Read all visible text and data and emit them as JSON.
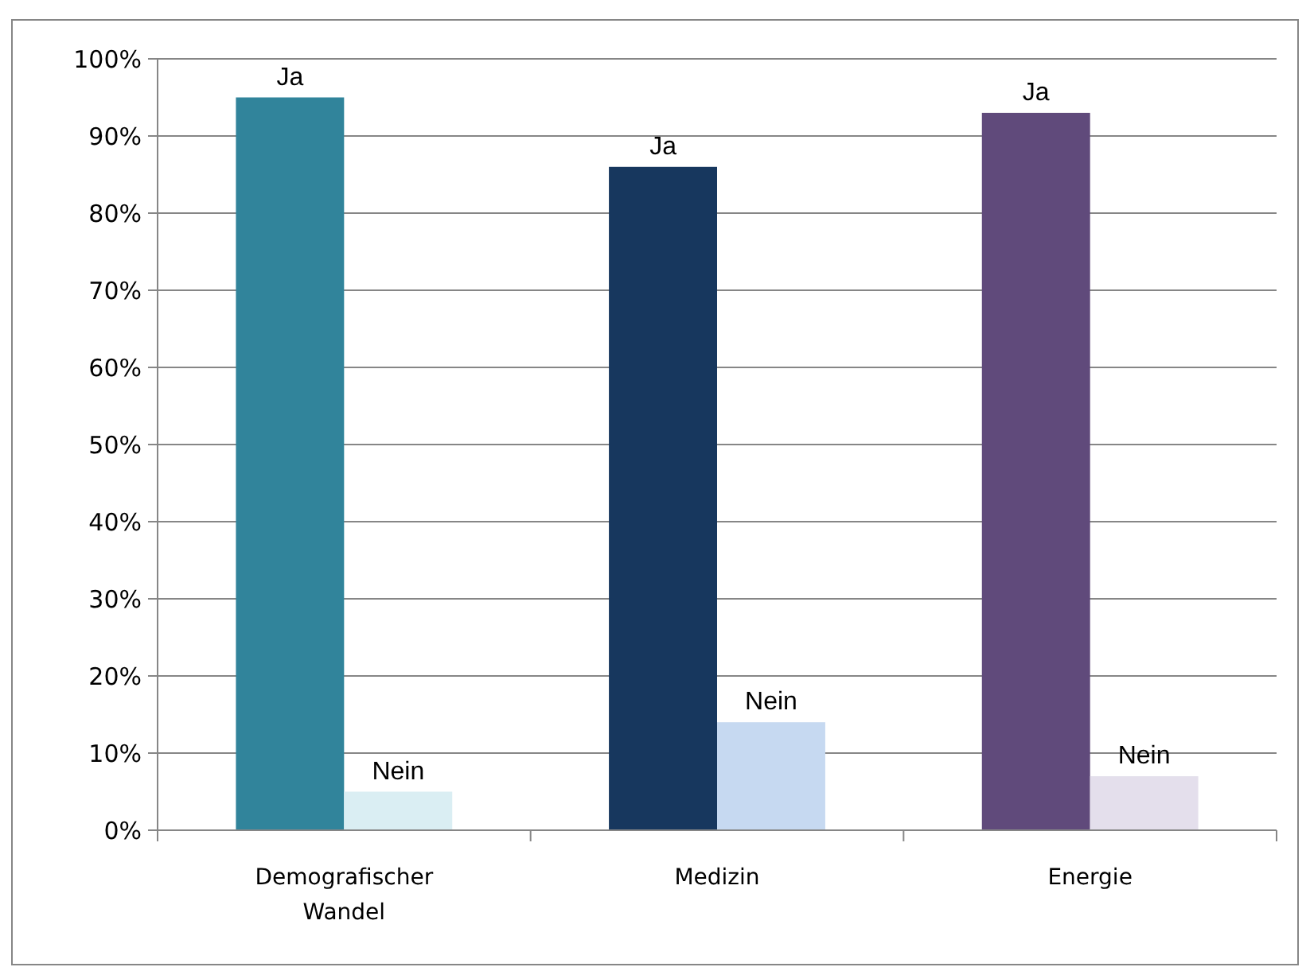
{
  "chart_data": {
    "type": "bar",
    "categories": [
      "Demografischer Wandel",
      "Medizin",
      "Energie"
    ],
    "series": [
      {
        "name": "Ja",
        "colors": [
          "#31849b",
          "#17375e",
          "#604a7b"
        ],
        "values": [
          95,
          86,
          93
        ]
      },
      {
        "name": "Nein",
        "colors": [
          "#daeef3",
          "#c6d9f1",
          "#e4dfec"
        ],
        "values": [
          5,
          14,
          7
        ]
      }
    ],
    "ylim": [
      0,
      100
    ],
    "yticks": [
      {
        "value": 0,
        "label": "0%"
      },
      {
        "value": 10,
        "label": "10%"
      },
      {
        "value": 20,
        "label": "20%"
      },
      {
        "value": 30,
        "label": "30%"
      },
      {
        "value": 40,
        "label": "40%"
      },
      {
        "value": 50,
        "label": "50%"
      },
      {
        "value": 60,
        "label": "60%"
      },
      {
        "value": 70,
        "label": "70%"
      },
      {
        "value": 80,
        "label": "80%"
      },
      {
        "value": 90,
        "label": "90%"
      },
      {
        "value": 100,
        "label": "100%"
      }
    ],
    "grid": "y"
  }
}
